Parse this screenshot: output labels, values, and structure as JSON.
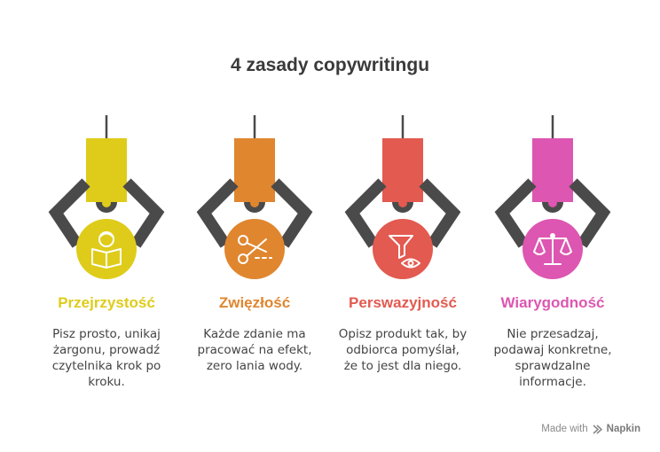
{
  "title": "4 zasady copywritingu",
  "colors": {
    "claw": "#4a4a4a",
    "title": "#3a3a3a",
    "text": "#444444"
  },
  "cards": [
    {
      "title": "Przejrzystość",
      "color": "#dfcc1a",
      "icon": "reading-person-icon",
      "desc": [
        "Pisz prosto, unikaj",
        "żargonu, prowadź",
        "czytelnika krok po",
        "kroku."
      ]
    },
    {
      "title": "Zwięzłość",
      "color": "#e0862f",
      "icon": "scissors-icon",
      "desc": [
        "Każde zdanie ma",
        "pracować na efekt,",
        "zero lania wody."
      ]
    },
    {
      "title": "Perswazyjność",
      "color": "#e35a50",
      "icon": "funnel-eye-icon",
      "desc": [
        "Opisz produkt tak, by",
        "odbiorca pomyślał,",
        "że to jest dla niego."
      ]
    },
    {
      "title": "Wiarygodność",
      "color": "#dd56b1",
      "icon": "balance-scale-icon",
      "desc": [
        "Nie przesadzaj,",
        "podawaj konkretne,",
        "sprawdzalne",
        "informacje."
      ]
    }
  ],
  "footer": {
    "prefix": "Made with",
    "brand": "Napkin"
  }
}
